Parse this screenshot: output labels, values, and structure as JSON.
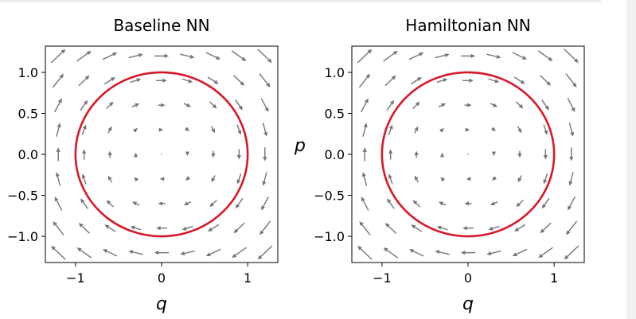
{
  "figure": {
    "colors": {
      "arrow": "#757575",
      "circle": "#d7182a",
      "axis": "#000000",
      "scrollbar": "#f1f1f1"
    }
  },
  "chart_data": [
    {
      "type": "quiver",
      "title": "Baseline NN",
      "xlabel": "q",
      "ylabel": "p",
      "xlim": [
        -1.35,
        1.35
      ],
      "ylim": [
        -1.32,
        1.32
      ],
      "xticks": [
        -1,
        0,
        1
      ],
      "xtick_labels": [
        "−1",
        "0",
        "1"
      ],
      "yticks": [
        -1.0,
        -0.5,
        0.0,
        0.5,
        1.0
      ],
      "ytick_labels": [
        "−1.0",
        "−0.5",
        "0.0",
        "0.5",
        "1.0"
      ],
      "vector_field": {
        "description": "rotation field (dq/dt = p, dp/dt = -q)",
        "grid": [
          -1.2,
          -0.9,
          -0.6,
          -0.3,
          0,
          0.3,
          0.6,
          0.9,
          1.2
        ]
      },
      "trajectory": {
        "shape": "circle",
        "center": [
          0,
          0
        ],
        "radius": 1.0
      }
    },
    {
      "type": "quiver",
      "title": "Hamiltonian NN",
      "xlabel": "q",
      "ylabel": "p",
      "xlim": [
        -1.35,
        1.35
      ],
      "ylim": [
        -1.32,
        1.32
      ],
      "xticks": [
        -1,
        0,
        1
      ],
      "xtick_labels": [
        "−1",
        "0",
        "1"
      ],
      "yticks": [
        -1.0,
        -0.5,
        0.0,
        0.5,
        1.0
      ],
      "ytick_labels": [
        "−1.0",
        "−0.5",
        "0.0",
        "0.5",
        "1.0"
      ],
      "vector_field": {
        "description": "rotation field (dq/dt = p, dp/dt = -q)",
        "grid": [
          -1.2,
          -0.9,
          -0.6,
          -0.3,
          0,
          0.3,
          0.6,
          0.9,
          1.2
        ]
      },
      "trajectory": {
        "shape": "circle",
        "center": [
          0,
          0
        ],
        "radius": 1.0
      }
    }
  ]
}
